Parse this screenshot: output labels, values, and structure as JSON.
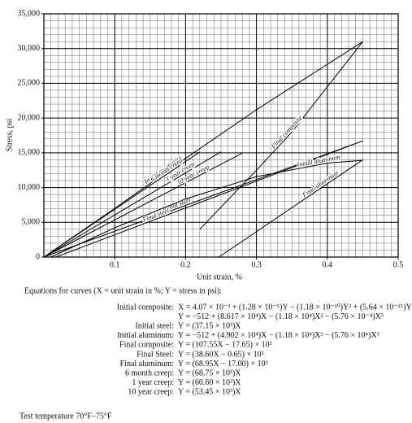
{
  "chart_data": {
    "type": "line",
    "x_label": "Unit strain, %",
    "y_label": "Stress, psi",
    "xlim": [
      0,
      0.5
    ],
    "ylim": [
      0,
      35000
    ],
    "xticks": [
      0.1,
      0.2,
      0.3,
      0.4,
      0.5
    ],
    "yticks": [
      0,
      {
        "value": 5000,
        "label": "5,000"
      },
      {
        "value": 10000,
        "label": "10,000"
      },
      {
        "value": 15000,
        "label": "15,000"
      },
      {
        "value": 20000,
        "label": "20,000"
      },
      {
        "value": 25000,
        "label": "25,000"
      },
      {
        "value": 30000,
        "label": "30,000"
      },
      {
        "value": 35000,
        "label": "35,000"
      }
    ],
    "grid": true,
    "minor_grid": {
      "x": 0.01,
      "y": 1000
    },
    "series": [
      {
        "name": "Initial composite",
        "color": "#000000",
        "x": [
          0,
          0.1,
          0.2,
          0.3,
          0.45
        ],
        "values": [
          0,
          7000,
          14200,
          21200,
          31000
        ]
      },
      {
        "name": "6 month creep",
        "color": "#000000",
        "x": [
          0,
          0.22
        ],
        "values": [
          0,
          15125
        ]
      },
      {
        "name": "1 year creep",
        "color": "#000000",
        "x": [
          0,
          0.25
        ],
        "values": [
          0,
          15150
        ]
      },
      {
        "name": "10 year creep",
        "color": "#000000",
        "x": [
          0,
          0.28
        ],
        "values": [
          0,
          14966
        ]
      },
      {
        "name": "Initial steel",
        "color": "#000000",
        "x": [
          0,
          0.45
        ],
        "values": [
          0,
          16718
        ]
      },
      {
        "name": "Final steel",
        "color": "#000000",
        "x": [
          0.017,
          0.45
        ],
        "values": [
          0,
          16720
        ]
      },
      {
        "name": "Initial aluminum",
        "color": "#000000",
        "x": [
          0.01,
          0.1,
          0.2,
          0.3,
          0.4,
          0.45
        ],
        "values": [
          0,
          4214,
          8359,
          11577,
          13522,
          13908
        ]
      },
      {
        "name": "Final aluminum",
        "color": "#000000",
        "x": [
          0.247,
          0.45
        ],
        "values": [
          0,
          14000
        ]
      },
      {
        "name": "Final composite",
        "color": "#000000",
        "x": [
          0.22,
          0.3,
          0.35,
          0.4,
          0.45
        ],
        "values": [
          4000,
          12500,
          18000,
          24500,
          31000
        ]
      }
    ]
  },
  "equations": {
    "heading": "Equations for curves (X = unit strain in %; Y = stress in psi):",
    "rows": [
      {
        "label": "Initial composite:",
        "formula": "X = 4.07 × 10⁻³ + (1.28 × 10⁻⁵)Y − (1.18 × 10⁻¹⁰)Y² + (5.64 × 10⁻¹⁵)Y³"
      },
      {
        "label": null,
        "formula": "Y = −512 + (8.617 × 10⁴)X − (1.18 × 10⁴)X² − (5.76 × 10⁻⁴)X³"
      },
      {
        "label": "Initial steel:",
        "formula": "Y = (37.15 × 10³)X"
      },
      {
        "label": "Initial aluminum:",
        "formula": "Y = −512 + (4.902 × 10⁴)X − (1.18 × 10⁴)X² − (5.76 × 10⁴)X³"
      },
      {
        "label": "Final composite:",
        "formula": "Y = (107.55X − 17.65) × 10³"
      },
      {
        "label": "Final Steel:",
        "formula": "Y = (38.60X − 0.65) × 10³"
      },
      {
        "label": "Final aluminum:",
        "formula": "Y = (68.95X − 17.00) × 10³"
      },
      {
        "label": "6 month creep:",
        "formula": "Y = (68.75 × 10³)X"
      },
      {
        "label": "1 year creep:",
        "formula": "Y = (60.60 × 10³)X"
      },
      {
        "label": "10 year creep:",
        "formula": "Y = (53.45 × 10³)X"
      }
    ],
    "footnote": "Test temperature 70°F–75°F"
  }
}
